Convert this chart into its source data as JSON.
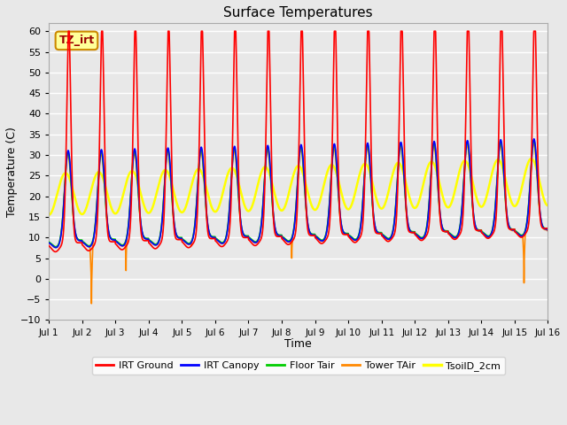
{
  "title": "Surface Temperatures",
  "xlabel": "Time",
  "ylabel": "Temperature (C)",
  "ylim": [
    -10,
    62
  ],
  "yticks": [
    -10,
    -5,
    0,
    5,
    10,
    15,
    20,
    25,
    30,
    35,
    40,
    45,
    50,
    55,
    60
  ],
  "xtick_labels": [
    "Jul 1",
    "Jul 2",
    "Jul 3",
    "Jul 4",
    "Jul 5",
    "Jul 6",
    "Jul 7",
    "Jul 8",
    "Jul 9",
    "Jul 10",
    "Jul 11",
    "Jul 12",
    "Jul 13",
    "Jul 14",
    "Jul 15",
    "Jul 16"
  ],
  "series": {
    "IRT Ground": {
      "color": "#ff0000",
      "lw": 1.2
    },
    "IRT Canopy": {
      "color": "#0000ff",
      "lw": 1.2
    },
    "Floor Tair": {
      "color": "#00cc00",
      "lw": 1.2
    },
    "Tower TAir": {
      "color": "#ff8800",
      "lw": 1.2
    },
    "TsoilD_2cm": {
      "color": "#ffff00",
      "lw": 1.8
    }
  },
  "annotation_text": "TZ_irt",
  "annotation_bg": "#ffff99",
  "annotation_border": "#cc8800",
  "plot_bg_color": "#e8e8e8",
  "fig_bg_color": "#e8e8e8",
  "grid_color": "#ffffff",
  "title_fontsize": 11
}
